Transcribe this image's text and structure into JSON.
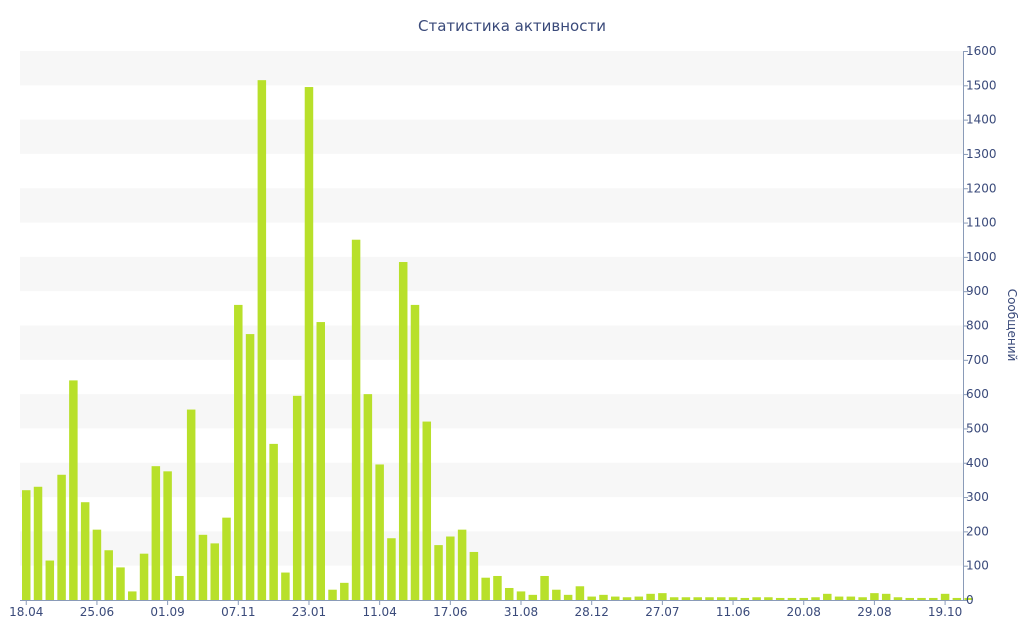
{
  "chart_data": {
    "type": "bar",
    "title": "Статистика активности",
    "ylabel": "Сообщений",
    "xlabel": "",
    "y_axis_side": "right",
    "ylim": [
      0,
      1600
    ],
    "y_ticks": [
      0,
      100,
      200,
      300,
      400,
      500,
      600,
      700,
      800,
      900,
      1000,
      1100,
      1200,
      1300,
      1400,
      1500,
      1600
    ],
    "x_tick_labels": [
      {
        "label": "18.04",
        "index": 0
      },
      {
        "label": "25.06",
        "index": 6
      },
      {
        "label": "01.09",
        "index": 12
      },
      {
        "label": "07.11",
        "index": 18
      },
      {
        "label": "23.01",
        "index": 24
      },
      {
        "label": "11.04",
        "index": 30
      },
      {
        "label": "17.06",
        "index": 36
      },
      {
        "label": "31.08",
        "index": 42
      },
      {
        "label": "28.12",
        "index": 48
      },
      {
        "label": "27.07",
        "index": 54
      },
      {
        "label": "11.06",
        "index": 60
      },
      {
        "label": "20.08",
        "index": 66
      },
      {
        "label": "29.08",
        "index": 72
      },
      {
        "label": "19.10",
        "index": 78
      }
    ],
    "grid": true,
    "bar_color": "#b8e02a",
    "band_color": "#f7f7f7",
    "values": [
      320,
      330,
      115,
      365,
      640,
      285,
      205,
      145,
      95,
      25,
      135,
      390,
      375,
      70,
      555,
      190,
      165,
      240,
      860,
      775,
      1515,
      455,
      80,
      595,
      1495,
      810,
      30,
      50,
      1050,
      600,
      395,
      180,
      985,
      860,
      520,
      160,
      185,
      205,
      140,
      65,
      70,
      35,
      25,
      15,
      70,
      30,
      15,
      40,
      10,
      15,
      10,
      8,
      10,
      18,
      20,
      8,
      8,
      8,
      8,
      8,
      8,
      6,
      8,
      8,
      6,
      6,
      6,
      8,
      18,
      10,
      10,
      8,
      20,
      18,
      8,
      6,
      6,
      6,
      18,
      6,
      6
    ]
  }
}
